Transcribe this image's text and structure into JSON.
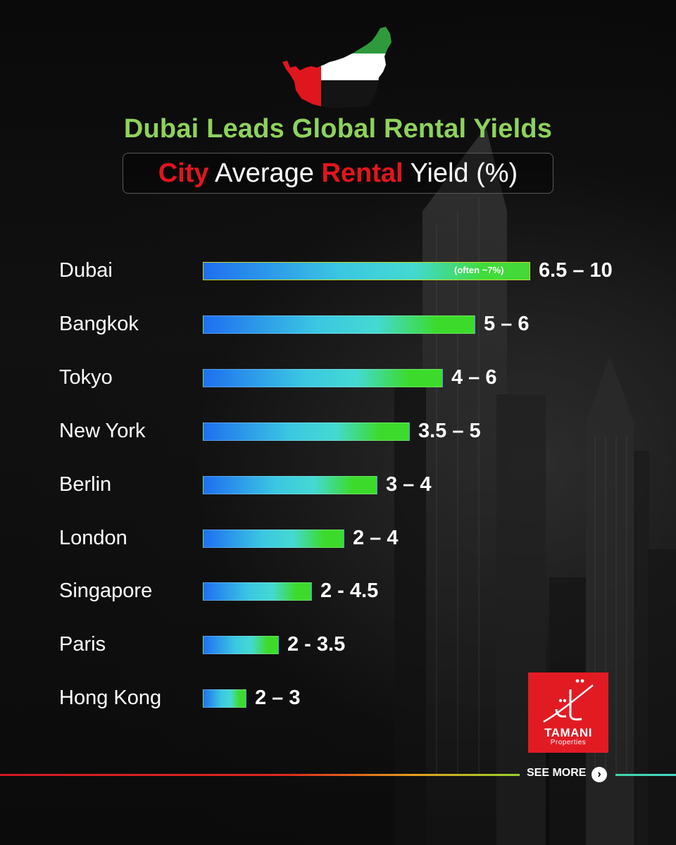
{
  "header": {
    "title": "Dubai Leads Global Rental Yields",
    "subtitle_part1": "City",
    "subtitle_part2": " Average ",
    "subtitle_part3": "Rental",
    "subtitle_part4": " Yield (%)"
  },
  "colors": {
    "title_green": "#8ed25b",
    "accent_red": "#e3151c",
    "bar_start": "#1f6ff0",
    "bar_mid": "#44d9d2",
    "bar_end": "#3cdb2b"
  },
  "chart_data": {
    "type": "bar",
    "orientation": "horizontal",
    "title": "Dubai Leads Global Rental Yields",
    "subtitle": "City Average Rental Yield (%)",
    "categories": [
      "Dubai",
      "Bangkok",
      "Tokyo",
      "New York",
      "Berlin",
      "London",
      "Singapore",
      "Paris",
      "Hong Kong"
    ],
    "value_labels": [
      "6.5 – 10",
      "5 – 6",
      "4 – 6",
      "3.5 – 5",
      "3 – 4",
      "2 – 4",
      "2 - 4.5",
      "2 - 3.5",
      "2 – 3"
    ],
    "values": [
      10,
      8.33,
      7.33,
      6.33,
      5.33,
      4.33,
      3.33,
      2.33,
      1.33
    ],
    "annotation": {
      "category": "Dubai",
      "text": "(often ~7%)"
    },
    "grid": false,
    "legend": "none"
  },
  "footer": {
    "see_more": "SEE MORE",
    "see_more_icon": "chevron-right-icon"
  },
  "logo": {
    "name": "TAMANI",
    "sub": "Properties",
    "arabic": "تماني العقارية"
  }
}
